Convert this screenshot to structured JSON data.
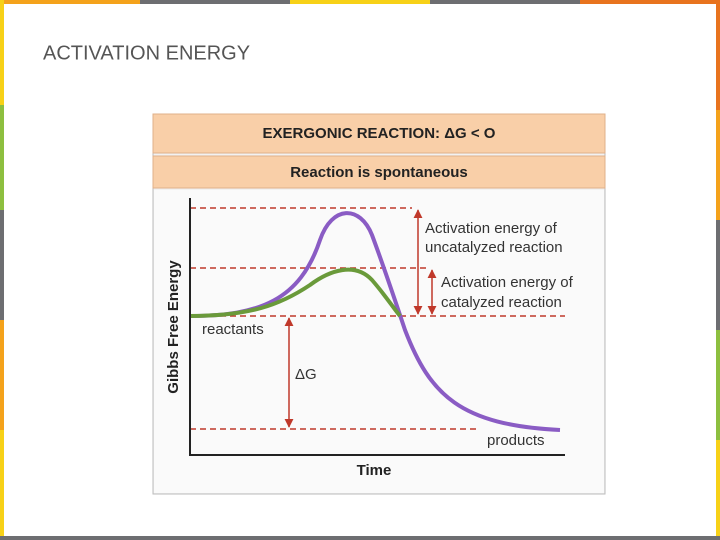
{
  "title": "ACTIVATION ENERGY",
  "diagram": {
    "header": "EXERGONIC REACTION: ΔG < O",
    "subheader": "Reaction is spontaneous",
    "y_axis_label": "Gibbs Free Energy",
    "x_axis_label": "Time",
    "annotations": {
      "uncatalyzed": [
        "Activation energy of",
        "uncatalyzed reaction"
      ],
      "catalyzed": [
        "Activation energy of",
        "catalyzed reaction"
      ],
      "reactants": "reactants",
      "delta_g": "ΔG",
      "products": "products"
    }
  }
}
